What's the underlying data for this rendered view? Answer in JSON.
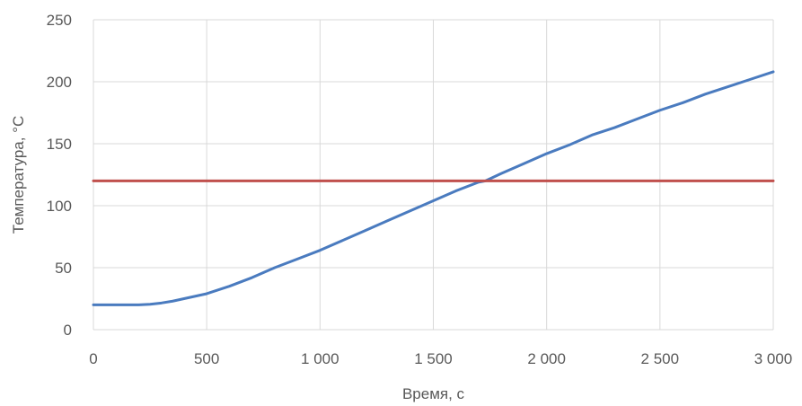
{
  "chart_data": {
    "type": "line",
    "title": "",
    "xlabel": "Время, с",
    "ylabel": "Температура, °C",
    "xlim": [
      0,
      3000
    ],
    "ylim": [
      0,
      250
    ],
    "grid": true,
    "legend": "none",
    "x_ticks": [
      0,
      500,
      1000,
      1500,
      2000,
      2500,
      3000
    ],
    "x_tick_labels": [
      "0",
      "500",
      "1 000",
      "1 500",
      "2 000",
      "2 500",
      "3 000"
    ],
    "y_ticks": [
      0,
      50,
      100,
      150,
      200,
      250
    ],
    "y_tick_labels": [
      "0",
      "50",
      "100",
      "150",
      "200",
      "250"
    ],
    "series": [
      {
        "color": "#4a7bbf",
        "x": [
          0,
          100,
          200,
          250,
          300,
          350,
          400,
          500,
          600,
          700,
          800,
          900,
          1000,
          1100,
          1200,
          1300,
          1400,
          1500,
          1600,
          1700,
          1730,
          1800,
          1900,
          2000,
          2100,
          2200,
          2300,
          2400,
          2500,
          2600,
          2700,
          2800,
          2900,
          3000
        ],
        "y": [
          20,
          20,
          20,
          20.5,
          21.5,
          23,
          25,
          29,
          35,
          42,
          50,
          57,
          64,
          72,
          80,
          88,
          96,
          104,
          112,
          119,
          120,
          126,
          134,
          142,
          149,
          157,
          163,
          170,
          177,
          183,
          190,
          196,
          202,
          208
        ]
      },
      {
        "color": "#c0504d",
        "x": [
          0,
          3000
        ],
        "y": [
          120,
          120
        ]
      }
    ]
  }
}
